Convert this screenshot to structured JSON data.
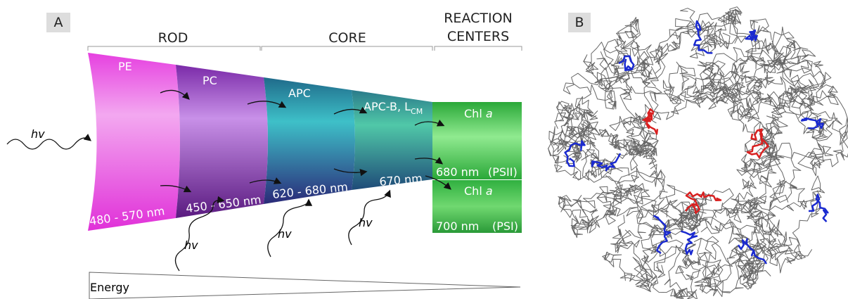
{
  "panel_a": {
    "label": "A",
    "headers": {
      "rod": "ROD",
      "core": "CORE",
      "reaction_centers": [
        "REACTION",
        "CENTERS"
      ]
    },
    "segments": [
      {
        "name": "PE",
        "range": "480 - 570 nm"
      },
      {
        "name": "PC",
        "range": "450 - 650 nm"
      },
      {
        "name": "APC",
        "range": "620 - 680 nm"
      },
      {
        "name": {
          "text": "APC-B, L",
          "sub": "CM"
        },
        "range": "670 nm"
      }
    ],
    "centers": [
      {
        "name": {
          "text": "Chl ",
          "italic": "a"
        },
        "wavelength": "680 nm",
        "system": "(PSII)"
      },
      {
        "name": {
          "text": "Chl ",
          "italic": "a"
        },
        "wavelength": "700 nm",
        "system": "(PSI)"
      }
    ],
    "photon": "hv",
    "energy": "Energy"
  },
  "panel_b": {
    "label": "B"
  }
}
